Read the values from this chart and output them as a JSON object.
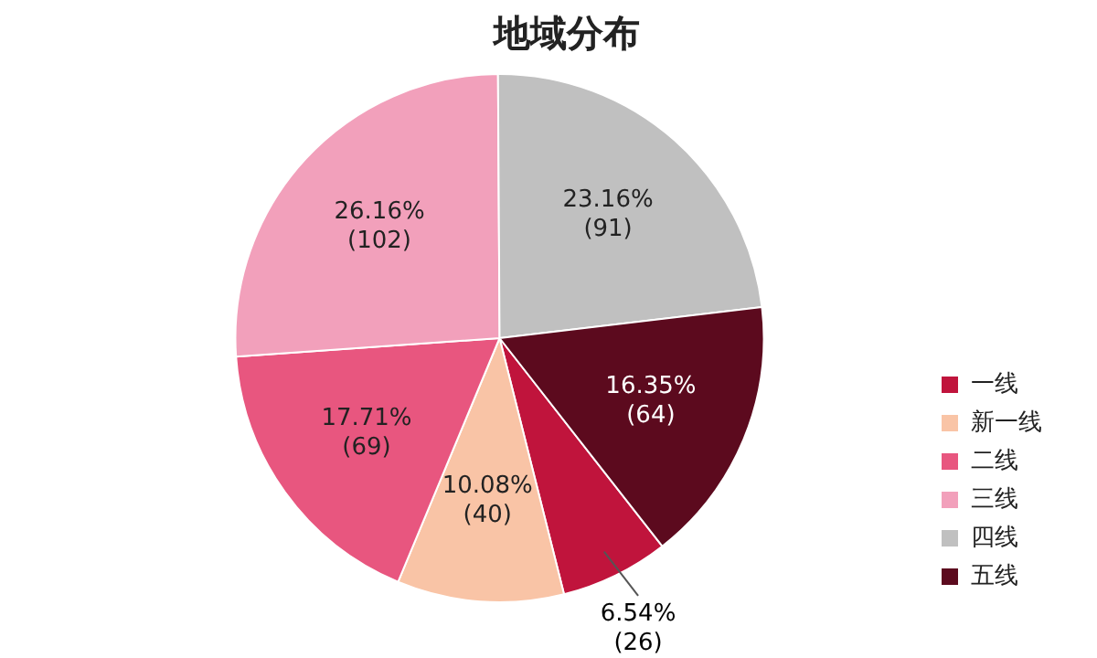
{
  "chart_data": {
    "type": "pie",
    "title": "地域分布",
    "categories": [
      "一线",
      "新一线",
      "二线",
      "三线",
      "四线",
      "五线"
    ],
    "values": [
      26,
      40,
      69,
      102,
      91,
      64
    ],
    "colors": [
      "#c0143c",
      "#f9c4a6",
      "#e8567f",
      "#f2a0bb",
      "#c0c0c0",
      "#5c0a1e"
    ],
    "value_labels": [
      "6.54%\n(26)",
      "10.08%\n(40)",
      "17.71%\n(69)",
      "26.16%\n(102)",
      "23.16%\n(91)",
      "16.35%\n(64)"
    ],
    "legend": "right"
  }
}
